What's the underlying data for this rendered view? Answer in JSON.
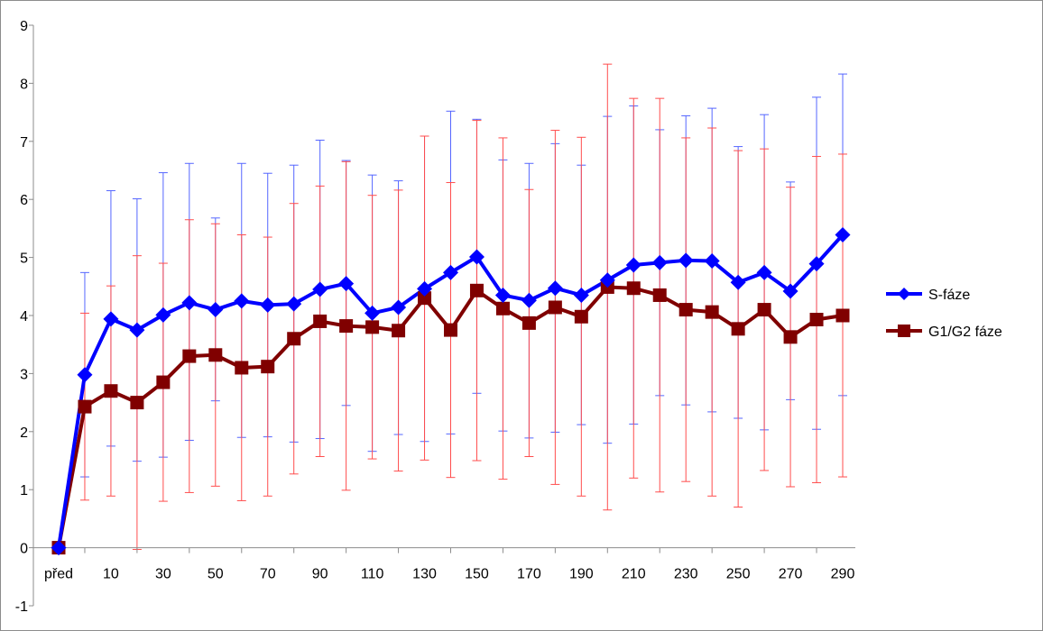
{
  "chart_data": {
    "type": "line",
    "title": "",
    "xlabel": "",
    "ylabel": "",
    "ylim": [
      -1,
      9
    ],
    "yticks": [
      -1,
      0,
      1,
      2,
      3,
      4,
      5,
      6,
      7,
      8,
      9
    ],
    "categories": [
      "před",
      "0",
      "10",
      "20",
      "30",
      "40",
      "50",
      "60",
      "70",
      "80",
      "90",
      "100",
      "110",
      "120",
      "130",
      "140",
      "150",
      "160",
      "170",
      "180",
      "190",
      "200",
      "210",
      "220",
      "230",
      "240",
      "250",
      "260",
      "270",
      "280",
      "290"
    ],
    "x_tick_labels": [
      "před",
      "10",
      "30",
      "50",
      "70",
      "90",
      "110",
      "130",
      "150",
      "170",
      "190",
      "210",
      "230",
      "250",
      "270",
      "290"
    ],
    "grid": false,
    "legend_position": "right",
    "series": [
      {
        "name": "S-fáze",
        "color": "#0000ff",
        "marker": "diamond",
        "values": [
          0,
          2.98,
          3.94,
          3.75,
          4.01,
          4.22,
          4.1,
          4.25,
          4.18,
          4.2,
          4.45,
          4.55,
          4.04,
          4.14,
          4.46,
          4.74,
          5.01,
          4.35,
          4.26,
          4.47,
          4.35,
          4.61,
          4.87,
          4.91,
          4.95,
          4.94,
          4.57,
          4.74,
          4.42,
          4.89,
          5.39
        ],
        "err_upper": [
          0,
          4.74,
          6.15,
          6.01,
          6.46,
          6.62,
          5.68,
          6.62,
          6.45,
          6.59,
          7.02,
          6.67,
          6.42,
          6.32,
          7.09,
          7.52,
          7.38,
          6.68,
          6.62,
          6.96,
          6.59,
          7.43,
          7.61,
          7.2,
          7.44,
          7.57,
          6.91,
          7.46,
          6.3,
          7.76,
          8.16
        ],
        "err_lower": [
          0,
          1.22,
          1.75,
          1.49,
          1.56,
          1.85,
          2.53,
          1.9,
          1.91,
          1.82,
          1.88,
          2.45,
          1.66,
          1.95,
          1.83,
          1.96,
          2.66,
          2.01,
          1.89,
          1.99,
          2.12,
          1.8,
          2.13,
          2.62,
          2.46,
          2.34,
          2.23,
          2.03,
          2.55,
          2.04,
          2.62
        ]
      },
      {
        "name": "G1/G2 fáze",
        "color": "#800000",
        "marker": "square",
        "errorbar_color": "#ff4d4d",
        "values": [
          0,
          2.43,
          2.7,
          2.5,
          2.85,
          3.3,
          3.32,
          3.1,
          3.12,
          3.6,
          3.9,
          3.82,
          3.8,
          3.74,
          4.3,
          3.75,
          4.43,
          4.12,
          3.87,
          4.14,
          3.98,
          4.49,
          4.47,
          4.35,
          4.1,
          4.06,
          3.77,
          4.1,
          3.63,
          3.93,
          4.0
        ],
        "err_upper": [
          0,
          4.04,
          4.51,
          5.03,
          4.9,
          5.65,
          5.58,
          5.39,
          5.35,
          5.93,
          6.23,
          6.65,
          6.07,
          6.16,
          7.09,
          6.29,
          7.36,
          7.06,
          6.17,
          7.19,
          7.07,
          8.33,
          7.74,
          7.74,
          7.06,
          7.23,
          6.84,
          6.87,
          6.21,
          6.74,
          6.78
        ]
      }
    ]
  }
}
